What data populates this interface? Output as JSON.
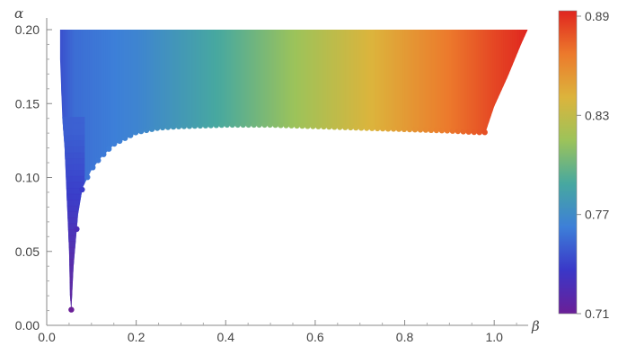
{
  "chart_data": {
    "type": "heatmap",
    "title": "",
    "xlabel": "β",
    "ylabel": "α",
    "xlim": [
      0.0,
      1.1
    ],
    "ylim": [
      0.0,
      0.2
    ],
    "x_ticks": [
      "0.0",
      "0.2",
      "0.4",
      "0.6",
      "0.8",
      "1.0"
    ],
    "x_tick_values": [
      0.0,
      0.2,
      0.4,
      0.6,
      0.8,
      1.0
    ],
    "y_ticks": [
      "0.00",
      "0.05",
      "0.10",
      "0.15",
      "0.20"
    ],
    "y_tick_values": [
      0.0,
      0.05,
      0.1,
      0.15,
      0.2
    ],
    "colorbar": {
      "ticks": [
        "0.71",
        "0.77",
        "0.83",
        "0.89"
      ],
      "tick_values": [
        0.71,
        0.77,
        0.83,
        0.89
      ],
      "range": [
        0.71,
        0.89
      ],
      "colors": [
        "#6a1f97",
        "#3a37c8",
        "#3d7fd8",
        "#47a8a0",
        "#9cc35a",
        "#dcb43c",
        "#ec7a2c",
        "#e0251f"
      ]
    },
    "region": {
      "description_values": "filled region of colored points; color depends mainly on beta",
      "lower_boundary": {
        "beta": [
          0.055,
          0.06,
          0.07,
          0.08,
          0.1,
          0.12,
          0.15,
          0.2,
          0.25,
          0.3,
          0.4,
          0.5,
          0.6,
          0.7,
          0.8,
          0.9,
          0.96,
          0.98
        ],
        "alpha": [
          0.01,
          0.04,
          0.075,
          0.093,
          0.105,
          0.113,
          0.122,
          0.13,
          0.133,
          0.134,
          0.135,
          0.135,
          0.134,
          0.133,
          0.132,
          0.131,
          0.13,
          0.13
        ]
      },
      "right_boundary": {
        "beta": [
          0.98,
          1.0,
          1.03,
          1.06,
          1.075
        ],
        "alpha": [
          0.13,
          0.148,
          0.168,
          0.19,
          0.2
        ]
      },
      "left_boundary": {
        "beta": [
          0.03,
          0.03,
          0.035,
          0.04,
          0.045,
          0.05,
          0.052,
          0.055
        ],
        "alpha": [
          0.2,
          0.18,
          0.14,
          0.12,
          0.085,
          0.05,
          0.02,
          0.01
        ]
      },
      "colormap_x_to_z": {
        "beta": [
          0.03,
          0.06,
          0.2,
          0.4,
          0.6,
          0.8,
          1.0,
          1.075
        ],
        "z": [
          0.745,
          0.755,
          0.765,
          0.79,
          0.82,
          0.85,
          0.88,
          0.89
        ]
      },
      "low_beta_column": {
        "alpha": [
          0.01,
          0.05,
          0.085,
          0.13
        ],
        "z": [
          0.71,
          0.72,
          0.735,
          0.75
        ]
      }
    }
  }
}
